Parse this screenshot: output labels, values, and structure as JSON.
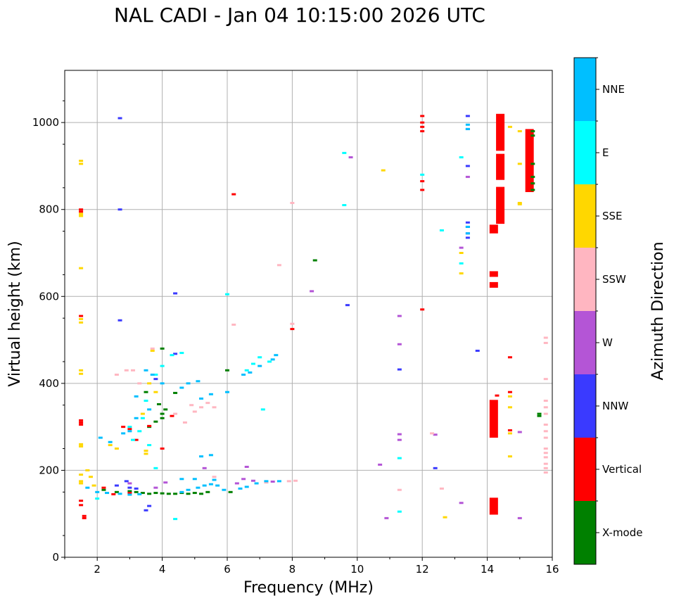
{
  "chart_data": {
    "type": "scatter",
    "title": "NAL CADI - Jan 04 10:15:00 2026 UTC",
    "xlabel": "Frequency (MHz)",
    "ylabel": "Virtual height (km)",
    "xlim": [
      1,
      16
    ],
    "ylim": [
      0,
      1120
    ],
    "xticks": [
      2,
      4,
      6,
      8,
      10,
      12,
      14,
      16
    ],
    "yticks": [
      0,
      200,
      400,
      600,
      800,
      1000
    ],
    "grid": true,
    "colorbar": {
      "label": "Azimuth Direction",
      "categories": [
        {
          "name": "X-mode",
          "color": "#008000"
        },
        {
          "name": "Vertical",
          "color": "#ff0000"
        },
        {
          "name": "NNW",
          "color": "#3a3aff"
        },
        {
          "name": "W",
          "color": "#b455d6"
        },
        {
          "name": "SSW",
          "color": "#ffb6c1"
        },
        {
          "name": "SSE",
          "color": "#ffd700"
        },
        {
          "name": "E",
          "color": "#00ffff"
        },
        {
          "name": "NNE",
          "color": "#00bfff"
        }
      ]
    },
    "series": [
      {
        "name": "X-mode",
        "color": "#008000",
        "points": [
          [
            3.4,
            148
          ],
          [
            3.6,
            146
          ],
          [
            3.8,
            148
          ],
          [
            4.0,
            147
          ],
          [
            4.2,
            146
          ],
          [
            4.4,
            146
          ],
          [
            4.6,
            148
          ],
          [
            4.8,
            146
          ],
          [
            5.0,
            148
          ],
          [
            5.2,
            146
          ],
          [
            5.4,
            150
          ],
          [
            3.2,
            150
          ],
          [
            3.0,
            152
          ],
          [
            2.6,
            150
          ],
          [
            2.2,
            155
          ],
          [
            4.0,
            320
          ],
          [
            4.0,
            330
          ],
          [
            3.8,
            312
          ],
          [
            3.6,
            300
          ],
          [
            4.1,
            340
          ],
          [
            3.9,
            352
          ],
          [
            4.0,
            480
          ],
          [
            3.5,
            380
          ],
          [
            4.4,
            378
          ],
          [
            6.1,
            150
          ],
          [
            6.0,
            430
          ],
          [
            8.7,
            683
          ],
          [
            15.4,
            970
          ],
          [
            15.4,
            980
          ],
          [
            15.4,
            905
          ],
          [
            15.4,
            875
          ],
          [
            15.4,
            860
          ],
          [
            15.4,
            845
          ],
          [
            15.6,
            330
          ],
          [
            15.6,
            325
          ]
        ]
      },
      {
        "name": "Vertical",
        "color": "#ff0000",
        "points": [
          [
            1.5,
            315
          ],
          [
            1.5,
            310
          ],
          [
            1.5,
            305
          ],
          [
            1.5,
            800
          ],
          [
            1.5,
            795
          ],
          [
            1.5,
            555
          ],
          [
            1.5,
            130
          ],
          [
            1.5,
            120
          ],
          [
            1.6,
            90
          ],
          [
            1.6,
            95
          ],
          [
            2.2,
            160
          ],
          [
            2.8,
            300
          ],
          [
            3.0,
            295
          ],
          [
            3.2,
            270
          ],
          [
            3.6,
            302
          ],
          [
            4.0,
            250
          ],
          [
            4.3,
            325
          ],
          [
            2.5,
            145
          ],
          [
            3.0,
            148
          ],
          [
            6.2,
            835
          ],
          [
            8.0,
            525
          ],
          [
            12.0,
            1015
          ],
          [
            12.0,
            1000
          ],
          [
            12.0,
            990
          ],
          [
            12.0,
            980
          ],
          [
            12.0,
            865
          ],
          [
            12.0,
            845
          ],
          [
            12.0,
            570
          ],
          [
            14.7,
            460
          ],
          [
            14.7,
            380
          ],
          [
            14.7,
            292
          ],
          [
            14.3,
            372
          ]
        ]
      },
      {
        "name": "NNW",
        "color": "#3a3aff",
        "points": [
          [
            2.7,
            1010
          ],
          [
            2.7,
            800
          ],
          [
            2.7,
            545
          ],
          [
            3.5,
            108
          ],
          [
            3.6,
            118
          ],
          [
            3.0,
            160
          ],
          [
            3.2,
            158
          ],
          [
            4.4,
            607
          ],
          [
            3.8,
            410
          ],
          [
            4.4,
            468
          ],
          [
            9.7,
            580
          ],
          [
            11.3,
            432
          ],
          [
            12.4,
            205
          ],
          [
            13.4,
            985
          ],
          [
            13.4,
            1015
          ],
          [
            13.4,
            900
          ],
          [
            13.4,
            770
          ],
          [
            13.4,
            760
          ],
          [
            13.4,
            745
          ],
          [
            13.4,
            735
          ],
          [
            13.7,
            475
          ],
          [
            2.9,
            175
          ],
          [
            2.6,
            165
          ]
        ]
      },
      {
        "name": "W",
        "color": "#b455d6",
        "points": [
          [
            9.8,
            920
          ],
          [
            8.6,
            612
          ],
          [
            12.4,
            282
          ],
          [
            13.2,
            712
          ],
          [
            13.2,
            125
          ],
          [
            15.0,
            288
          ],
          [
            15.0,
            90
          ],
          [
            13.4,
            875
          ],
          [
            10.7,
            213
          ],
          [
            10.9,
            90
          ],
          [
            11.3,
            283
          ],
          [
            11.3,
            270
          ],
          [
            11.3,
            555
          ],
          [
            11.3,
            490
          ],
          [
            6.5,
            180
          ],
          [
            6.8,
            176
          ],
          [
            6.3,
            170
          ],
          [
            6.6,
            208
          ],
          [
            5.3,
            205
          ],
          [
            7.4,
            174
          ],
          [
            3.0,
            170
          ],
          [
            3.8,
            160
          ],
          [
            4.1,
            172
          ]
        ]
      },
      {
        "name": "SSW",
        "color": "#ffb6c1",
        "points": [
          [
            15.8,
            505
          ],
          [
            15.8,
            493
          ],
          [
            15.8,
            410
          ],
          [
            15.8,
            360
          ],
          [
            15.8,
            345
          ],
          [
            15.8,
            330
          ],
          [
            15.8,
            305
          ],
          [
            15.8,
            290
          ],
          [
            15.8,
            275
          ],
          [
            15.8,
            250
          ],
          [
            15.8,
            240
          ],
          [
            15.8,
            230
          ],
          [
            15.8,
            215
          ],
          [
            15.8,
            205
          ],
          [
            15.8,
            195
          ],
          [
            12.6,
            158
          ],
          [
            11.3,
            155
          ],
          [
            12.3,
            285
          ],
          [
            8.0,
            815
          ],
          [
            7.6,
            672
          ],
          [
            8.0,
            537
          ],
          [
            6.2,
            535
          ],
          [
            5.0,
            335
          ],
          [
            5.2,
            345
          ],
          [
            4.9,
            350
          ],
          [
            5.4,
            355
          ],
          [
            5.6,
            345
          ],
          [
            7.2,
            172
          ],
          [
            7.9,
            175
          ],
          [
            8.1,
            176
          ],
          [
            4.7,
            310
          ],
          [
            3.1,
            430
          ],
          [
            3.3,
            400
          ],
          [
            2.6,
            420
          ],
          [
            5.6,
            185
          ],
          [
            4.4,
            330
          ],
          [
            2.9,
            430
          ],
          [
            3.7,
            480
          ]
        ]
      },
      {
        "name": "SSE",
        "color": "#ffd700",
        "points": [
          [
            1.5,
            912
          ],
          [
            1.5,
            905
          ],
          [
            1.5,
            790
          ],
          [
            1.5,
            785
          ],
          [
            1.5,
            665
          ],
          [
            1.5,
            548
          ],
          [
            1.5,
            540
          ],
          [
            1.5,
            430
          ],
          [
            1.5,
            422
          ],
          [
            1.5,
            260
          ],
          [
            1.5,
            255
          ],
          [
            1.5,
            190
          ],
          [
            1.5,
            175
          ],
          [
            1.5,
            170
          ],
          [
            10.8,
            890
          ],
          [
            13.2,
            700
          ],
          [
            13.2,
            653
          ],
          [
            12.7,
            92
          ],
          [
            14.7,
            990
          ],
          [
            14.7,
            370
          ],
          [
            14.7,
            345
          ],
          [
            14.7,
            285
          ],
          [
            14.7,
            232
          ],
          [
            15.0,
            980
          ],
          [
            15.0,
            905
          ],
          [
            15.0,
            815
          ],
          [
            15.0,
            812
          ],
          [
            3.5,
            238
          ],
          [
            3.5,
            245
          ],
          [
            3.6,
            400
          ],
          [
            3.8,
            380
          ],
          [
            3.4,
            330
          ],
          [
            2.6,
            250
          ],
          [
            2.4,
            258
          ],
          [
            3.7,
            475
          ],
          [
            1.7,
            200
          ],
          [
            1.8,
            185
          ],
          [
            1.9,
            165
          ]
        ]
      },
      {
        "name": "E",
        "color": "#00ffff",
        "points": [
          [
            9.6,
            930
          ],
          [
            9.6,
            810
          ],
          [
            12.0,
            880
          ],
          [
            13.2,
            920
          ],
          [
            12.6,
            752
          ],
          [
            13.2,
            676
          ],
          [
            11.3,
            228
          ],
          [
            11.3,
            105
          ],
          [
            7.1,
            340
          ],
          [
            6.0,
            605
          ],
          [
            6.6,
            430
          ],
          [
            6.8,
            445
          ],
          [
            7.0,
            460
          ],
          [
            7.3,
            450
          ],
          [
            3.1,
            270
          ],
          [
            3.3,
            290
          ],
          [
            3.5,
            360
          ],
          [
            3.8,
            420
          ],
          [
            4.0,
            440
          ],
          [
            4.3,
            465
          ],
          [
            4.6,
            470
          ],
          [
            3.6,
            258
          ],
          [
            3.8,
            205
          ],
          [
            4.4,
            88
          ],
          [
            2.0,
            135
          ],
          [
            3.0,
            300
          ],
          [
            3.4,
            320
          ]
        ]
      },
      {
        "name": "NNE",
        "color": "#00bfff",
        "points": [
          [
            1.7,
            160
          ],
          [
            2.0,
            150
          ],
          [
            2.3,
            148
          ],
          [
            2.7,
            146
          ],
          [
            3.0,
            144
          ],
          [
            3.3,
            145
          ],
          [
            4.6,
            150
          ],
          [
            4.8,
            155
          ],
          [
            5.1,
            160
          ],
          [
            5.3,
            165
          ],
          [
            5.5,
            168
          ],
          [
            5.7,
            165
          ],
          [
            5.9,
            155
          ],
          [
            6.4,
            158
          ],
          [
            6.6,
            162
          ],
          [
            6.9,
            170
          ],
          [
            7.2,
            175
          ],
          [
            7.6,
            175
          ],
          [
            6.5,
            420
          ],
          [
            6.7,
            425
          ],
          [
            7.0,
            440
          ],
          [
            7.4,
            455
          ],
          [
            7.5,
            465
          ],
          [
            5.2,
            365
          ],
          [
            5.5,
            375
          ],
          [
            6.0,
            380
          ],
          [
            4.6,
            390
          ],
          [
            4.8,
            400
          ],
          [
            5.1,
            405
          ],
          [
            5.5,
            235
          ],
          [
            5.2,
            232
          ],
          [
            4.6,
            180
          ],
          [
            5.0,
            180
          ],
          [
            5.6,
            178
          ],
          [
            2.8,
            285
          ],
          [
            3.0,
            290
          ],
          [
            3.2,
            320
          ],
          [
            3.6,
            340
          ],
          [
            2.1,
            275
          ],
          [
            2.4,
            265
          ],
          [
            3.2,
            370
          ],
          [
            4.0,
            400
          ],
          [
            3.7,
            420
          ],
          [
            3.5,
            430
          ],
          [
            13.4,
            995
          ],
          [
            13.4,
            985
          ],
          [
            13.4,
            760
          ],
          [
            13.4,
            745
          ]
        ]
      }
    ],
    "bars": [
      {
        "x": 14.2,
        "y1": 745,
        "y2": 765,
        "color": "#ff0000"
      },
      {
        "x": 14.2,
        "y1": 645,
        "y2": 658,
        "color": "#ff0000"
      },
      {
        "x": 14.2,
        "y1": 620,
        "y2": 633,
        "color": "#ff0000"
      },
      {
        "x": 14.2,
        "y1": 275,
        "y2": 362,
        "color": "#ff0000"
      },
      {
        "x": 14.2,
        "y1": 98,
        "y2": 137,
        "color": "#ff0000"
      },
      {
        "x": 14.4,
        "y1": 935,
        "y2": 1020,
        "color": "#ff0000"
      },
      {
        "x": 14.4,
        "y1": 868,
        "y2": 928,
        "color": "#ff0000"
      },
      {
        "x": 14.4,
        "y1": 767,
        "y2": 852,
        "color": "#ff0000"
      },
      {
        "x": 15.3,
        "y1": 840,
        "y2": 985,
        "color": "#ff0000"
      }
    ]
  }
}
